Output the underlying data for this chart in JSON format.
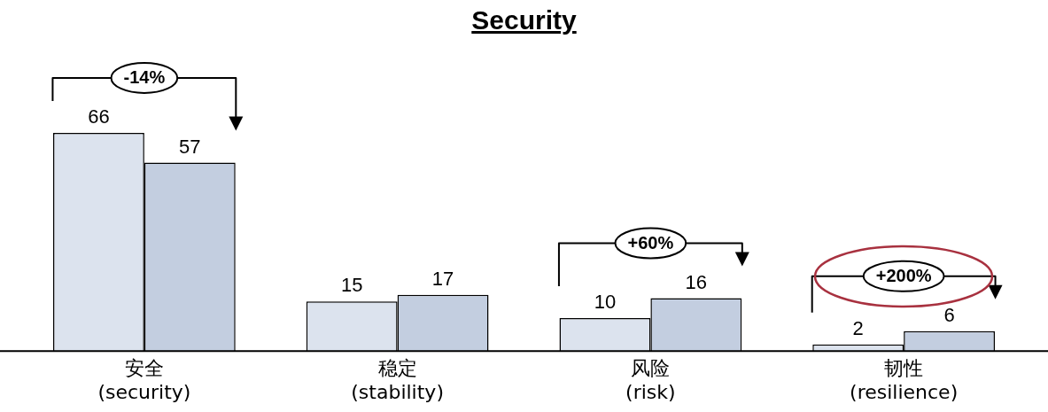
{
  "chart_data": {
    "type": "bar",
    "title": "Security",
    "categories": [
      "安全\n(security)",
      "稳定\n(stability)",
      "风险\n(risk)",
      "韧性\n(resilience)"
    ],
    "series": [
      {
        "color": "#dce3ee",
        "values": [
          66,
          15,
          10,
          2
        ]
      },
      {
        "color": "#c3cee0",
        "values": [
          57,
          17,
          16,
          6
        ]
      }
    ],
    "data_labels": true,
    "grid": false,
    "legend": false,
    "annotations": [
      {
        "text": "-14%",
        "x": "安全\n(security)",
        "y": 66
      },
      {
        "text": "+60%",
        "x": "风险\n(risk)",
        "y": 16
      },
      {
        "text": "+200%",
        "x": "韧性\n(resilience)",
        "y": 6
      }
    ]
  }
}
